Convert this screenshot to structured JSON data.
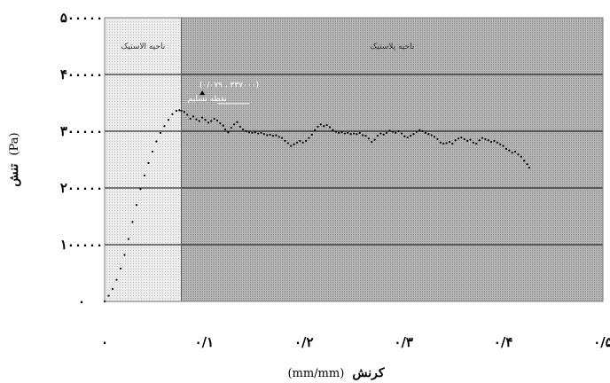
{
  "chart_data": {
    "type": "scatter",
    "xlabel": "کرنش (mm/mm)",
    "xlabel_parts": {
      "bold": "کرنش",
      "unit": "(mm/mm)"
    },
    "ylabel": "تنش (Pa)",
    "ylabel_parts": {
      "bold": "تنش",
      "unit": "(Pa)"
    },
    "xlim": [
      0,
      0.5
    ],
    "ylim": [
      0,
      500000
    ],
    "x_ticks": [
      {
        "value": 0,
        "label": "۰"
      },
      {
        "value": 0.1,
        "label": "۰/۱"
      },
      {
        "value": 0.2,
        "label": "۰/۲"
      },
      {
        "value": 0.3,
        "label": "۰/۳"
      },
      {
        "value": 0.4,
        "label": "۰/۴"
      },
      {
        "value": 0.5,
        "label": "۰/۵"
      }
    ],
    "y_ticks": [
      {
        "value": 0,
        "label": "۰"
      },
      {
        "value": 100000,
        "label": "۱۰۰۰۰۰"
      },
      {
        "value": 200000,
        "label": "۲۰۰۰۰۰"
      },
      {
        "value": 300000,
        "label": "۳۰۰۰۰۰"
      },
      {
        "value": 400000,
        "label": "۴۰۰۰۰۰"
      },
      {
        "value": 500000,
        "label": "۵۰۰۰۰۰"
      }
    ],
    "grid": true,
    "regions": [
      {
        "label": "ناحیه الاستیک",
        "x_range": [
          0,
          0.077
        ],
        "color": "#e2e2e2"
      },
      {
        "label": "ناحیه پلاستیک",
        "x_range": [
          0.077,
          0.5
        ],
        "color": "#a9a9a9"
      }
    ],
    "annotation": {
      "text": "(۰/۰۷۹ ، ۳۳۷۰۰۰)",
      "subtext": "نقطه تسلیم",
      "point": {
        "x": 0.098,
        "y": 367000
      }
    },
    "series": [
      {
        "points": [
          [
            0.0,
            0
          ],
          [
            0.004,
            10000
          ],
          [
            0.008,
            22000
          ],
          [
            0.012,
            38000
          ],
          [
            0.016,
            58000
          ],
          [
            0.02,
            82000
          ],
          [
            0.024,
            110000
          ],
          [
            0.028,
            140000
          ],
          [
            0.032,
            170000
          ],
          [
            0.036,
            198000
          ],
          [
            0.04,
            222000
          ],
          [
            0.044,
            244000
          ],
          [
            0.048,
            264000
          ],
          [
            0.052,
            282000
          ],
          [
            0.056,
            297000
          ],
          [
            0.06,
            309000
          ],
          [
            0.064,
            320000
          ],
          [
            0.068,
            330000
          ],
          [
            0.072,
            336000
          ],
          [
            0.075,
            337000
          ],
          [
            0.077,
            336000
          ],
          [
            0.08,
            334000
          ],
          [
            0.083,
            329000
          ],
          [
            0.086,
            322000
          ],
          [
            0.089,
            326000
          ],
          [
            0.092,
            321000
          ],
          [
            0.095,
            318000
          ],
          [
            0.098,
            324000
          ],
          [
            0.101,
            320000
          ],
          [
            0.104,
            315000
          ],
          [
            0.107,
            318000
          ],
          [
            0.11,
            322000
          ],
          [
            0.113,
            319000
          ],
          [
            0.116,
            314000
          ],
          [
            0.119,
            310000
          ],
          [
            0.121,
            303000
          ],
          [
            0.124,
            298000
          ],
          [
            0.127,
            306000
          ],
          [
            0.13,
            312000
          ],
          [
            0.133,
            316000
          ],
          [
            0.136,
            308000
          ],
          [
            0.139,
            303000
          ],
          [
            0.142,
            300000
          ],
          [
            0.145,
            298000
          ],
          [
            0.148,
            297000
          ],
          [
            0.151,
            298000
          ],
          [
            0.154,
            296000
          ],
          [
            0.157,
            297000
          ],
          [
            0.16,
            295000
          ],
          [
            0.163,
            293000
          ],
          [
            0.166,
            294000
          ],
          [
            0.169,
            292000
          ],
          [
            0.172,
            293000
          ],
          [
            0.175,
            290000
          ],
          [
            0.178,
            288000
          ],
          [
            0.181,
            283000
          ],
          [
            0.184,
            279000
          ],
          [
            0.187,
            274000
          ],
          [
            0.19,
            277000
          ],
          [
            0.193,
            280000
          ],
          [
            0.196,
            283000
          ],
          [
            0.199,
            280000
          ],
          [
            0.202,
            283000
          ],
          [
            0.205,
            288000
          ],
          [
            0.208,
            294000
          ],
          [
            0.211,
            302000
          ],
          [
            0.214,
            308000
          ],
          [
            0.217,
            312000
          ],
          [
            0.22,
            309000
          ],
          [
            0.223,
            311000
          ],
          [
            0.226,
            307000
          ],
          [
            0.229,
            302000
          ],
          [
            0.232,
            299000
          ],
          [
            0.235,
            297000
          ],
          [
            0.238,
            298000
          ],
          [
            0.241,
            296000
          ],
          [
            0.244,
            297000
          ],
          [
            0.247,
            295000
          ],
          [
            0.25,
            296000
          ],
          [
            0.253,
            295000
          ],
          [
            0.256,
            297000
          ],
          [
            0.259,
            293000
          ],
          [
            0.262,
            292000
          ],
          [
            0.265,
            287000
          ],
          [
            0.268,
            281000
          ],
          [
            0.271,
            285000
          ],
          [
            0.274,
            292000
          ],
          [
            0.277,
            296000
          ],
          [
            0.28,
            294000
          ],
          [
            0.283,
            297000
          ],
          [
            0.286,
            301000
          ],
          [
            0.289,
            299000
          ],
          [
            0.292,
            297000
          ],
          [
            0.295,
            300000
          ],
          [
            0.298,
            296000
          ],
          [
            0.301,
            291000
          ],
          [
            0.304,
            289000
          ],
          [
            0.307,
            292000
          ],
          [
            0.31,
            295000
          ],
          [
            0.313,
            299000
          ],
          [
            0.316,
            302000
          ],
          [
            0.319,
            300000
          ],
          [
            0.322,
            297000
          ],
          [
            0.325,
            295000
          ],
          [
            0.328,
            293000
          ],
          [
            0.331,
            290000
          ],
          [
            0.334,
            286000
          ],
          [
            0.337,
            280000
          ],
          [
            0.34,
            278000
          ],
          [
            0.343,
            279000
          ],
          [
            0.346,
            281000
          ],
          [
            0.349,
            278000
          ],
          [
            0.352,
            284000
          ],
          [
            0.355,
            287000
          ],
          [
            0.358,
            289000
          ],
          [
            0.361,
            286000
          ],
          [
            0.364,
            283000
          ],
          [
            0.367,
            285000
          ],
          [
            0.37,
            280000
          ],
          [
            0.373,
            278000
          ],
          [
            0.376,
            284000
          ],
          [
            0.379,
            288000
          ],
          [
            0.382,
            286000
          ],
          [
            0.385,
            284000
          ],
          [
            0.388,
            281000
          ],
          [
            0.391,
            283000
          ],
          [
            0.394,
            280000
          ],
          [
            0.397,
            277000
          ],
          [
            0.4,
            274000
          ],
          [
            0.403,
            269000
          ],
          [
            0.406,
            266000
          ],
          [
            0.409,
            262000
          ],
          [
            0.412,
            264000
          ],
          [
            0.415,
            259000
          ],
          [
            0.418,
            255000
          ],
          [
            0.421,
            248000
          ],
          [
            0.424,
            242000
          ],
          [
            0.426,
            236000
          ]
        ]
      }
    ]
  },
  "colors": {
    "elastic_region": "#e2e2e2",
    "plastic_region": "#a9a9a9",
    "gridline": "#000000",
    "marker": "#000000"
  }
}
